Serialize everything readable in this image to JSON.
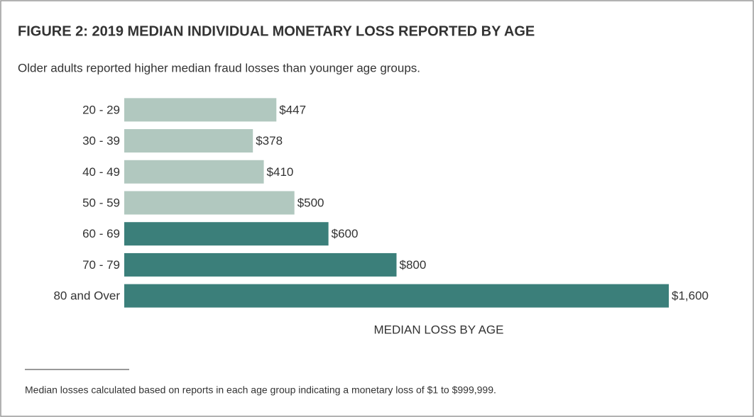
{
  "chart_data": {
    "type": "bar",
    "orientation": "horizontal",
    "title": "FIGURE 2: 2019 MEDIAN INDIVIDUAL MONETARY LOSS REPORTED BY AGE",
    "subtitle": "Older adults reported higher median fraud losses than younger age groups.",
    "categories": [
      "20 - 29",
      "30 - 39",
      "40 - 49",
      "50 - 59",
      "60 - 69",
      "70 - 79",
      "80 and Over"
    ],
    "values": [
      447,
      378,
      410,
      500,
      600,
      800,
      1600
    ],
    "value_labels": [
      "$447",
      "$378",
      "$410",
      "$500",
      "$600",
      "$800",
      "$1,600"
    ],
    "colors": [
      "#b1c8bf",
      "#b1c8bf",
      "#b1c8bf",
      "#b1c8bf",
      "#3b7f7a",
      "#3b7f7a",
      "#3b7f7a"
    ],
    "xlim": [
      0,
      1600
    ],
    "x_label": "MEDIAN LOSS BY AGE",
    "footnote": "Median losses calculated based on reports in each age group indicating a monetary loss of $1 to $999,999."
  }
}
